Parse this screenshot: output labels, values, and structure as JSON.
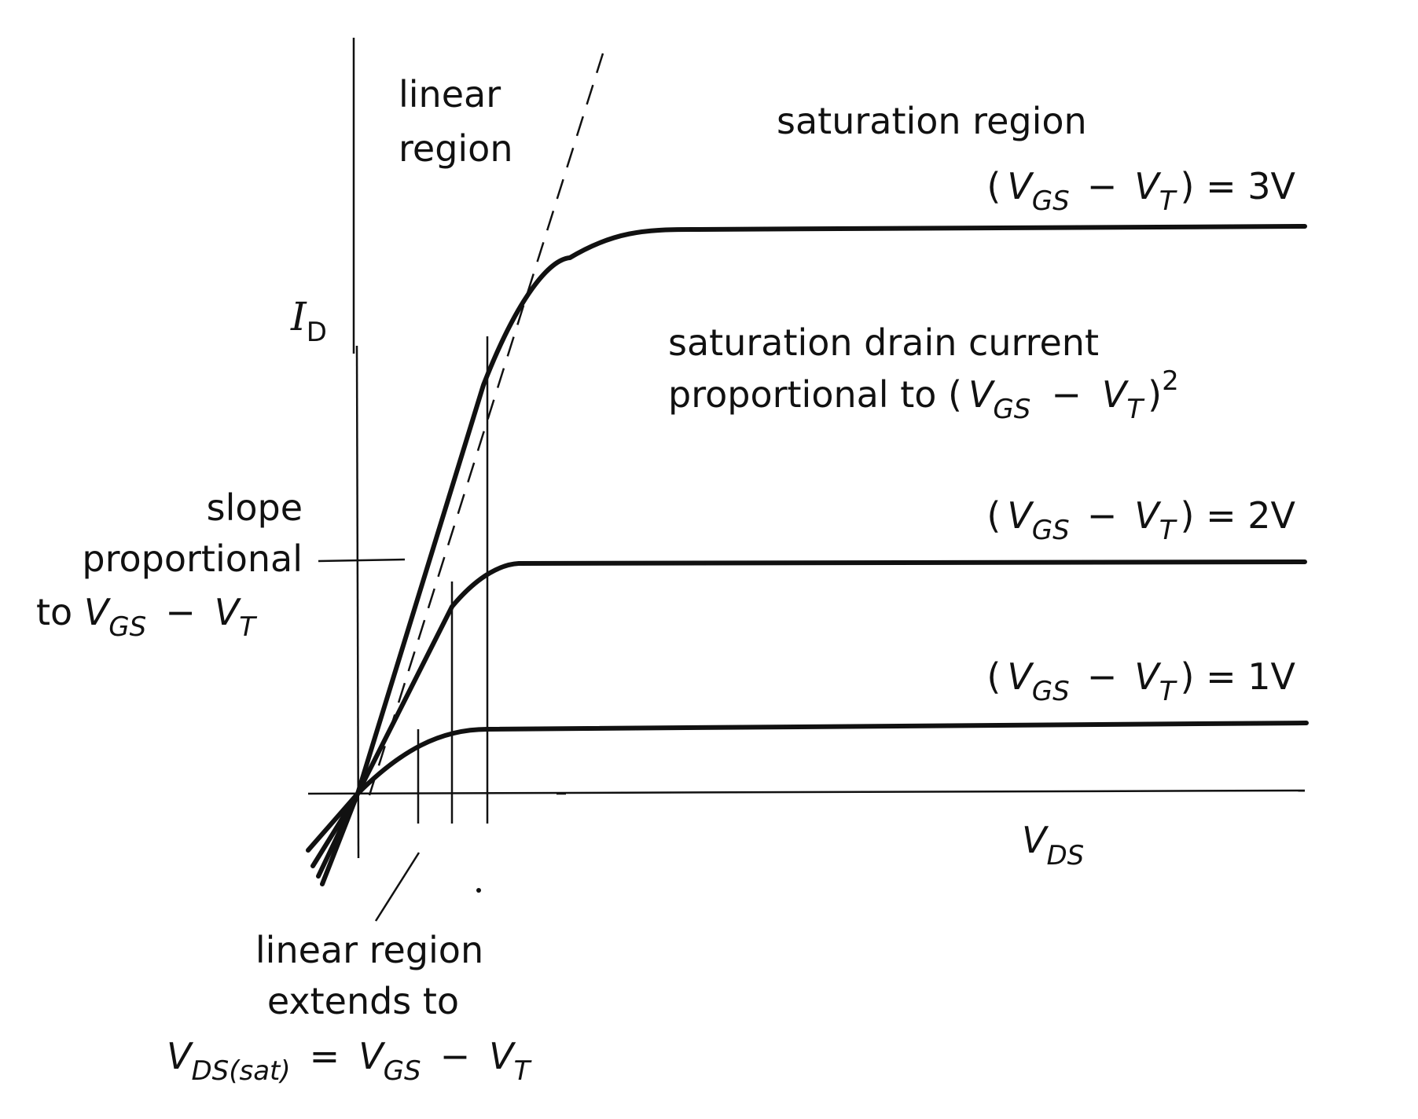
{
  "figure": {
    "axes": {
      "y_label": {
        "main": "I",
        "sub": "D"
      },
      "x_label": {
        "main": "V",
        "sub": "DS"
      }
    },
    "regions": {
      "linear_line1": "linear",
      "linear_line2": "region",
      "saturation": "saturation region"
    },
    "curves": [
      {
        "id": "vgs3",
        "label": {
          "open": "(",
          "v1": "V",
          "s1": "GS",
          "minus": "−",
          "v2": "V",
          "s2": "T",
          "close": ")",
          "rhs": " = 3V"
        }
      },
      {
        "id": "vgs2",
        "label": {
          "open": "(",
          "v1": "V",
          "s1": "GS",
          "minus": "−",
          "v2": "V",
          "s2": "T",
          "close": ")",
          "rhs": " = 2V"
        }
      },
      {
        "id": "vgs1",
        "label": {
          "open": "(",
          "v1": "V",
          "s1": "GS",
          "minus": "−",
          "v2": "V",
          "s2": "T",
          "close": ")",
          "rhs": " = 1V"
        }
      }
    ],
    "annotations": {
      "sat_current_line1": "saturation drain current",
      "sat_current_line2": {
        "text": "proportional to (",
        "v1": "V",
        "s1": "GS",
        "minus": "−",
        "v2": "V",
        "s2": "T",
        "close": ")",
        "exp": "2"
      },
      "slope_line1": "slope",
      "slope_line2": "proportional",
      "slope_line3": {
        "text": "to ",
        "v1": "V",
        "s1": "GS",
        "minus": "−",
        "v2": "V",
        "s2": "T"
      },
      "linear_ext_line1": "linear region",
      "linear_ext_line2": "extends to",
      "linear_ext_line3": {
        "v1": "V",
        "s1": "DS(sat)",
        "eq": "=",
        "v2": "V",
        "s2": "GS",
        "minus": "−",
        "v3": "V",
        "s3": "T"
      }
    }
  }
}
